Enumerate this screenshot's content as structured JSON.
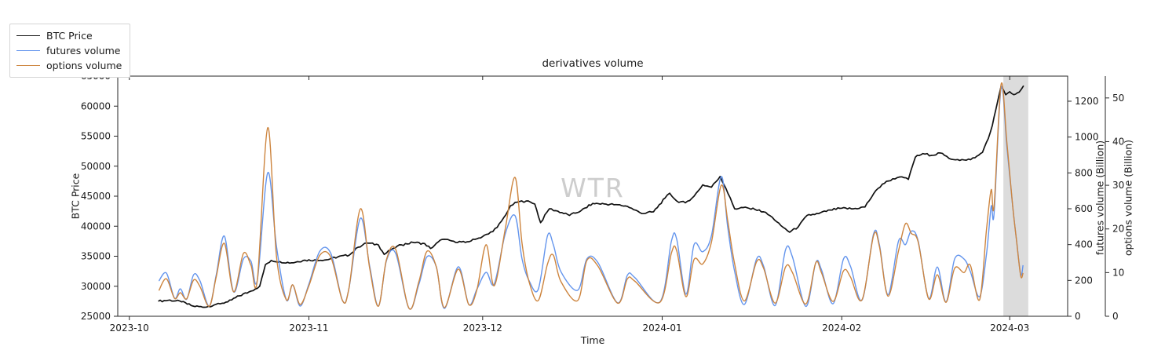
{
  "title": "derivatives volume",
  "watermark": "WTR",
  "legend": [
    {
      "label": "BTC Price",
      "color": "#111111"
    },
    {
      "label": "futures volume",
      "color": "#6495ed"
    },
    {
      "label": "options volume",
      "color": "#cd853f"
    }
  ],
  "axes": {
    "x": {
      "label": "Time",
      "unit": "days since 2023-10-01",
      "range_days": [
        -2,
        162
      ],
      "ticks": [
        {
          "d": 0,
          "label": "2023-10"
        },
        {
          "d": 31,
          "label": "2023-11"
        },
        {
          "d": 61,
          "label": "2023-12"
        },
        {
          "d": 92,
          "label": "2024-01"
        },
        {
          "d": 123,
          "label": "2024-02"
        },
        {
          "d": 152,
          "label": "2024-03"
        }
      ]
    },
    "y_left": {
      "label": "BTC Price",
      "range": [
        25000,
        65000
      ],
      "ticks": [
        25000,
        30000,
        35000,
        40000,
        45000,
        50000,
        55000,
        60000,
        65000
      ]
    },
    "y_right_futures": {
      "label": "futures volume (Billion)",
      "range": [
        0,
        1340
      ],
      "ticks": [
        0,
        200,
        400,
        600,
        800,
        1000,
        1200
      ]
    },
    "y_right_options": {
      "label": "options volume (Billion)",
      "range": [
        0,
        55
      ],
      "ticks": [
        0,
        10,
        20,
        30,
        40,
        50
      ]
    }
  },
  "chart_data": {
    "type": "line",
    "x_unit": "days since 2023-10-01",
    "date_start": "2023-10-06",
    "date_end": "2024-03-04",
    "shaded_region": {
      "x_start": 150.9,
      "x_end": 155.2,
      "color": "#dcdcdc",
      "note": "2024-02-29 to 2024-03-04"
    },
    "series": [
      {
        "name": "BTC Price",
        "axis": "y_left",
        "color": "#111111",
        "style": "jagged",
        "x": [
          5,
          7,
          9,
          11,
          13,
          15,
          17,
          19,
          21,
          22.5,
          23.5,
          24.5,
          26,
          28,
          30,
          32,
          34,
          36,
          38,
          39.5,
          41,
          43,
          44,
          45.5,
          47,
          49,
          51,
          52,
          54,
          56,
          58,
          60,
          62,
          63.5,
          65,
          65.8,
          67,
          68.5,
          70,
          71,
          72.5,
          74,
          76,
          78,
          80,
          82,
          84,
          86,
          88.5,
          90.5,
          92.5,
          93.3,
          94.5,
          96,
          97.5,
          99,
          100.5,
          102,
          103,
          104.5,
          106,
          108,
          109.5,
          111,
          112.5,
          114,
          115.5,
          117,
          119,
          121,
          123,
          125,
          127,
          128.5,
          130,
          131.8,
          133,
          134.5,
          135.7,
          137,
          138.5,
          140,
          141.5,
          143,
          144.5,
          146,
          147.3,
          148.3,
          149,
          149.6,
          150.1,
          150.5,
          151.3,
          152,
          152.7,
          153.3,
          154,
          154.4
        ],
        "y": [
          27500,
          27700,
          27400,
          26700,
          26500,
          27000,
          27400,
          28400,
          29200,
          30000,
          33600,
          34300,
          34100,
          33900,
          34300,
          34400,
          34400,
          34900,
          35200,
          36500,
          37200,
          36900,
          35300,
          36300,
          36900,
          37300,
          37100,
          36300,
          37800,
          37500,
          37300,
          37900,
          38700,
          39800,
          41900,
          43400,
          44000,
          44200,
          43700,
          40600,
          42900,
          42500,
          41800,
          42600,
          43800,
          43700,
          43600,
          43300,
          42100,
          42400,
          44700,
          45500,
          44200,
          43900,
          45000,
          46900,
          46500,
          48300,
          46300,
          42900,
          43100,
          42800,
          42400,
          41500,
          40100,
          39000,
          39900,
          41800,
          42100,
          42700,
          43000,
          42900,
          43200,
          45400,
          47000,
          47900,
          48200,
          47800,
          51500,
          52100,
          51800,
          52200,
          51300,
          51100,
          51000,
          51400,
          52300,
          54600,
          56800,
          59400,
          61600,
          63300,
          61900,
          62400,
          61900,
          62200,
          62800,
          63400
        ]
      },
      {
        "name": "futures volume",
        "axis": "y_right_futures",
        "color": "#6495ed",
        "style": "smooth",
        "x": [
          5.1,
          6.4,
          7.8,
          8.8,
          9.9,
          11.1,
          12.2,
          13.8,
          15,
          16.4,
          18,
          19.7,
          21,
          22.1,
          23.9,
          25.4,
          27.1,
          28.2,
          29.5,
          31,
          32.9,
          34.8,
          36.8,
          37.9,
          39.9,
          41.5,
          43,
          44.4,
          46,
          48.3,
          50,
          51.4,
          53,
          54.4,
          56.8,
          58.6,
          60,
          61.6,
          63,
          64.9,
          66.6,
          67.8,
          69,
          70.6,
          72.2,
          73.2,
          74.5,
          77.4,
          79,
          80.9,
          84.3,
          86,
          87.3,
          91.6,
          93.6,
          94.5,
          96.1,
          97.5,
          99,
          100.5,
          102.2,
          103.3,
          104.5,
          106.2,
          108.3,
          109.5,
          111.5,
          113.3,
          114.5,
          116.8,
          118.5,
          119.5,
          121.5,
          123.3,
          124.5,
          126.5,
          128.5,
          129.5,
          131,
          132.8,
          134,
          135,
          136.2,
          138,
          139.5,
          141,
          142.5,
          144.1,
          145.2,
          146.8,
          148,
          148.8,
          149.3,
          150.5,
          151.5,
          152.5,
          153.2,
          153.9,
          154.3
        ],
        "y": [
          197,
          241,
          101,
          153,
          95,
          232,
          197,
          57,
          230,
          447,
          136,
          320,
          307,
          202,
          801,
          390,
          92,
          175,
          57,
          180,
          364,
          350,
          88,
          153,
          547,
          280,
          57,
          311,
          350,
          44,
          180,
          333,
          276,
          44,
          276,
          66,
          150,
          245,
          180,
          460,
          561,
          320,
          200,
          150,
          450,
          400,
          250,
          145,
          320,
          300,
          75,
          230,
          215,
          80,
          420,
          430,
          123,
          400,
          360,
          450,
          780,
          500,
          250,
          66,
          320,
          280,
          60,
          372,
          330,
          55,
          298,
          260,
          70,
          320,
          280,
          90,
          460,
          400,
          120,
          420,
          400,
          475,
          420,
          100,
          275,
          80,
          320,
          320,
          250,
          110,
          350,
          613,
          574,
          1274,
          950,
          618,
          416,
          232,
          285
        ]
      },
      {
        "name": "options volume",
        "axis": "y_right_options",
        "color": "#cd853f",
        "style": "smooth",
        "x": [
          5.1,
          6.4,
          7.8,
          8.8,
          9.9,
          11.1,
          12.2,
          13.8,
          15,
          16.4,
          18,
          19.7,
          21,
          22.1,
          23.9,
          25.4,
          27.1,
          28.2,
          29.5,
          31,
          32.9,
          34.8,
          36.8,
          37.9,
          39.9,
          41.5,
          43,
          44.4,
          46,
          48.3,
          50,
          51.4,
          53,
          54.4,
          56.8,
          58.6,
          60,
          61.6,
          63,
          64.9,
          66.6,
          67.8,
          69,
          70.6,
          72.2,
          73.2,
          74.5,
          77.4,
          79,
          80.9,
          84.3,
          86,
          87.3,
          91.6,
          93.6,
          94.5,
          96.1,
          97.5,
          99,
          100.5,
          102.2,
          103.3,
          104.5,
          106.2,
          108.3,
          109.5,
          111.5,
          113.3,
          114.5,
          116.8,
          118.5,
          119.5,
          121.5,
          123.3,
          124.5,
          126.5,
          128.5,
          129.5,
          131,
          132.8,
          134,
          135,
          136.2,
          138,
          139.5,
          141,
          142.5,
          144.1,
          145.2,
          146.8,
          148,
          148.8,
          149.3,
          150.5,
          151.5,
          152.5,
          153.2,
          153.9,
          154.3
        ],
        "y": [
          5.9,
          8.6,
          4.1,
          5.4,
          4.0,
          8.3,
          6.8,
          2.3,
          9,
          16.7,
          5.6,
          14.4,
          11.7,
          8.3,
          43.2,
          13.7,
          3.8,
          7.2,
          2.7,
          7,
          14,
          13.5,
          3.6,
          6.3,
          24.6,
          11,
          2.3,
          13,
          15.3,
          1.8,
          8,
          14.9,
          11.3,
          2,
          10.8,
          2.7,
          6,
          16.4,
          7,
          20,
          31.8,
          16.7,
          8,
          3.6,
          12,
          14,
          8,
          3.6,
          12.8,
          11.5,
          3,
          8.6,
          8,
          3.2,
          14.5,
          15,
          4.5,
          13,
          12,
          17,
          30,
          22,
          12,
          3.5,
          12.5,
          11,
          3,
          11.3,
          10,
          2.8,
          12.2,
          10,
          3.4,
          10.4,
          9,
          3.8,
          18.5,
          16,
          4.6,
          15,
          21.2,
          19,
          17,
          4,
          9.5,
          3.2,
          11,
          10,
          11.7,
          3.8,
          20,
          29,
          25.2,
          53.1,
          40,
          25.4,
          17,
          9.2,
          9.9
        ]
      }
    ]
  }
}
